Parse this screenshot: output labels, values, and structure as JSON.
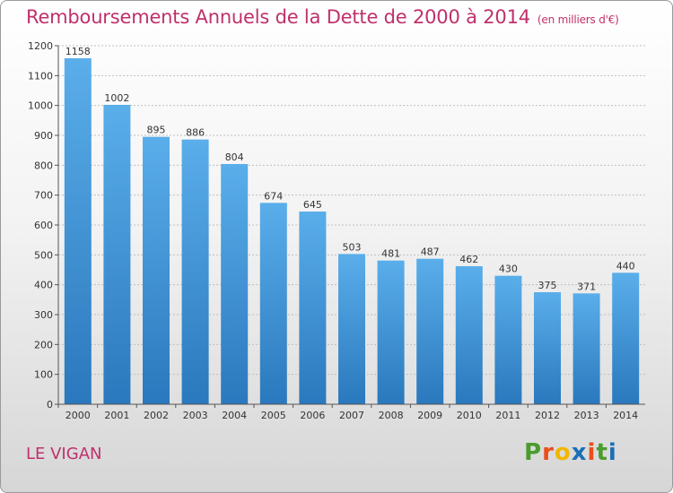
{
  "header": {
    "title": "Remboursements Annuels de la Dette de 2000 à 2014",
    "unit": "(en milliers d'€)"
  },
  "footer": {
    "commune": "LE VIGAN",
    "logo": "Proxiti",
    "logo_colors": [
      "#4a9c2e",
      "#e94e1b",
      "#f2b600",
      "#1b6fb5",
      "#e94e1b",
      "#4a9c2e",
      "#1b6fb5"
    ]
  },
  "colors": {
    "bar_top": "#5aaeea",
    "bar_bottom": "#2a78bd",
    "grid": "#bfbfbf",
    "title": "#c0306b"
  },
  "chart_data": {
    "type": "bar",
    "title": "Remboursements Annuels de la Dette de 2000 à 2014",
    "xlabel": "",
    "ylabel": "",
    "categories": [
      "2000",
      "2001",
      "2002",
      "2003",
      "2004",
      "2005",
      "2006",
      "2007",
      "2008",
      "2009",
      "2010",
      "2011",
      "2012",
      "2013",
      "2014"
    ],
    "values": [
      1158,
      1002,
      895,
      886,
      804,
      674,
      645,
      503,
      481,
      487,
      462,
      430,
      375,
      371,
      440
    ],
    "ylim": [
      0,
      1200
    ],
    "yticks": [
      0,
      100,
      200,
      300,
      400,
      500,
      600,
      700,
      800,
      900,
      1000,
      1100,
      1200
    ],
    "grid": true
  }
}
